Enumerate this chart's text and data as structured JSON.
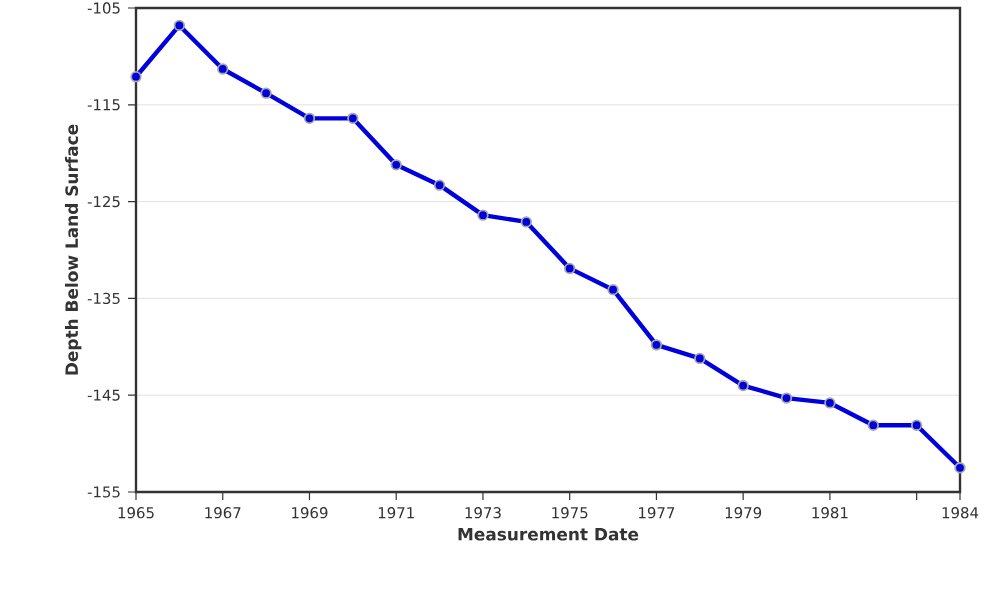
{
  "chart_data": {
    "type": "line",
    "xlabel": "Measurement Date",
    "ylabel": "Depth Below Land Surface",
    "x": [
      1965,
      1966,
      1967,
      1968,
      1969,
      1970,
      1971,
      1972,
      1973,
      1974,
      1975,
      1976,
      1977,
      1978,
      1979,
      1980,
      1981,
      1982,
      1983,
      1984
    ],
    "series": [
      {
        "color": "#0000dd",
        "values": [
          -112.1,
          -106.8,
          -111.3,
          -113.8,
          -116.4,
          -116.4,
          -121.2,
          -123.3,
          -126.4,
          -127.1,
          -131.9,
          -134.1,
          -139.8,
          -141.2,
          -144.0,
          -145.3,
          -145.8,
          -148.1,
          -148.1,
          -152.5
        ]
      }
    ],
    "xlim": [
      1965,
      1984
    ],
    "ylim": [
      -155,
      -105
    ],
    "xticks": [
      1965,
      1967,
      1969,
      1971,
      1973,
      1975,
      1977,
      1979,
      1981,
      {
        "value": 1983,
        "label": null
      },
      1984
    ],
    "yticks": [
      -155,
      -145,
      -135,
      -125,
      -115,
      -105
    ],
    "grid": "y",
    "marker": "circle",
    "line_style": "solid"
  }
}
